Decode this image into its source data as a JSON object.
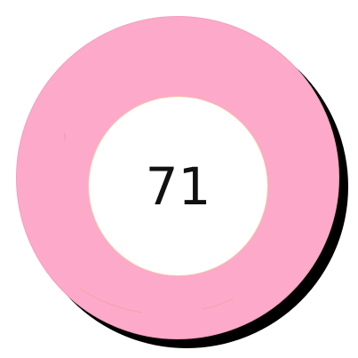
{
  "badge": {
    "value": "71",
    "ring_color": "#fda9c9",
    "shadow_color": "#000000",
    "center_color": "#ffffff",
    "text_color": "#111111"
  }
}
